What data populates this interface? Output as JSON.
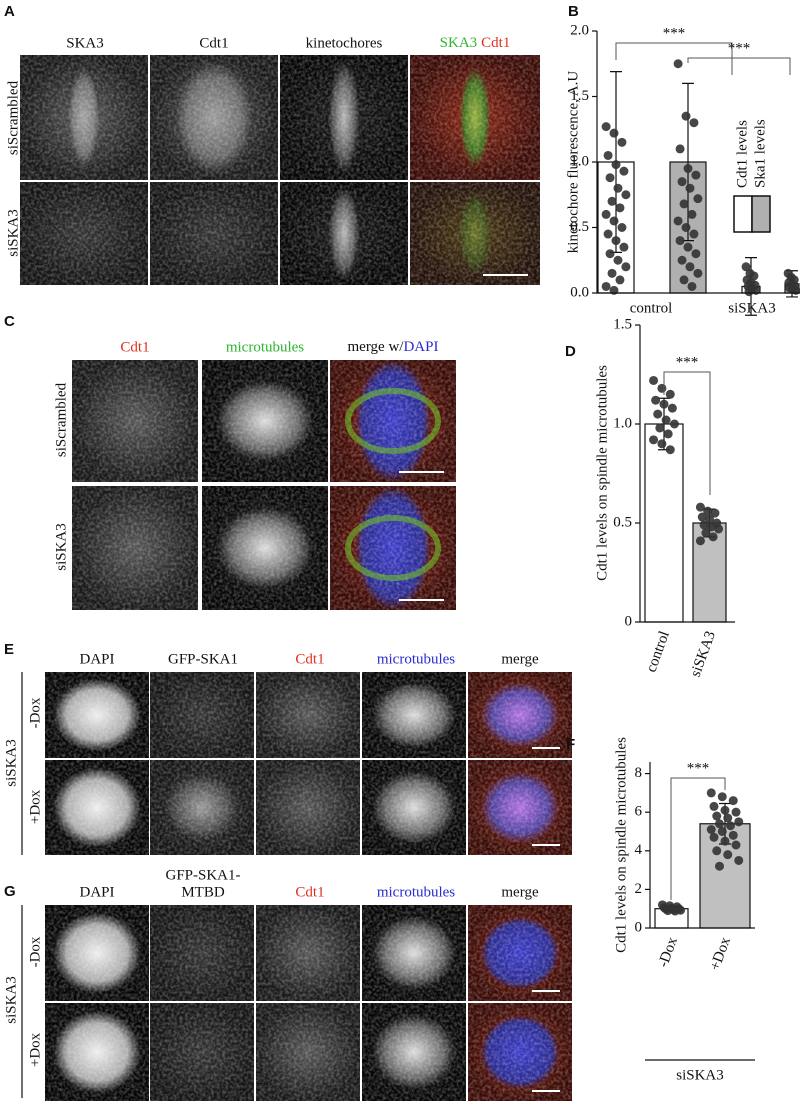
{
  "panels": {
    "A": {
      "label": "A",
      "columns": [
        "SKA3",
        "Cdt1",
        "kinetochores"
      ],
      "merge_column": [
        "SKA3",
        "Cdt1"
      ],
      "rows": [
        "siScrambled",
        "siSKA3"
      ]
    },
    "C": {
      "label": "C",
      "columns": [
        "Cdt1",
        "microtubules"
      ],
      "merge_column": [
        "merge w/",
        "DAPI"
      ],
      "rows": [
        "siScrambled",
        "siSKA3"
      ]
    },
    "E": {
      "label": "E",
      "columns": [
        "DAPI",
        "GFP-SKA1",
        "Cdt1",
        "microtubules",
        "merge"
      ],
      "group": "siSKA3",
      "rows": [
        "-Dox",
        "+Dox"
      ]
    },
    "G": {
      "label": "G",
      "columns": [
        "DAPI",
        "GFP-SKA1-",
        "MTBD",
        "Cdt1",
        "microtubules",
        "merge"
      ],
      "group": "siSKA3",
      "rows": [
        "-Dox",
        "+Dox"
      ]
    }
  },
  "chart_data": [
    {
      "type": "bar",
      "panel": "B",
      "y_label": "kinetochore fluorescence, A.U",
      "significance": [
        "***",
        "***"
      ],
      "categories": [
        "control",
        "siSKA3"
      ],
      "series": [
        {
          "name": "Cdt1 levels",
          "color": "#ffffff",
          "values": [
            1.0,
            0.05
          ],
          "errors": [
            0.69,
            0.22
          ],
          "points": [
            [
              1.27,
              1.22,
              1.15,
              1.05,
              0.98,
              0.93,
              0.88,
              0.8,
              0.75,
              0.7,
              0.65,
              0.6,
              0.55,
              0.5,
              0.45,
              0.4,
              0.35,
              0.3,
              0.25,
              0.2,
              0.15,
              0.1,
              0.05,
              0.02
            ],
            [
              0.2,
              0.15,
              0.13,
              0.1,
              0.08,
              0.06,
              0.05,
              0.03,
              0.02,
              0.01
            ]
          ]
        },
        {
          "name": "Ska1 levels",
          "color": "#b0b0b0",
          "values": [
            1.0,
            0.07
          ],
          "errors": [
            0.6,
            0.1
          ],
          "points": [
            [
              1.75,
              1.35,
              1.3,
              1.1,
              0.95,
              0.9,
              0.85,
              0.8,
              0.72,
              0.68,
              0.6,
              0.55,
              0.5,
              0.45,
              0.4,
              0.35,
              0.3,
              0.25,
              0.2,
              0.15,
              0.1,
              0.05
            ],
            [
              0.15,
              0.12,
              0.1,
              0.08,
              0.07,
              0.05,
              0.04,
              0.03,
              0.02
            ]
          ]
        }
      ],
      "ylim": [
        0,
        2
      ],
      "yticks": [
        {
          "value": 0,
          "label": "0.0"
        },
        0.5,
        {
          "value": 1,
          "label": "1.0"
        },
        1.5,
        {
          "value": 2,
          "label": "2.0"
        }
      ]
    },
    {
      "type": "bar",
      "panel": "D",
      "y_label": "Cdt1 levels on spindle microtubules",
      "significance": [
        "***"
      ],
      "categories": [
        "control",
        "siSKA3"
      ],
      "series": [
        {
          "colors": [
            "#ffffff",
            "#c0c0c0"
          ],
          "values": [
            1.0,
            0.5
          ],
          "errors": [
            0.13,
            0.07
          ],
          "points": [
            [
              1.22,
              1.18,
              1.15,
              1.12,
              1.1,
              1.08,
              1.05,
              1.02,
              1.0,
              0.98,
              0.95,
              0.92,
              0.9,
              0.87
            ],
            [
              0.58,
              0.56,
              0.55,
              0.53,
              0.52,
              0.5,
              0.49,
              0.48,
              0.47,
              0.45,
              0.43,
              0.41
            ]
          ]
        }
      ],
      "ylim": [
        0,
        1.5
      ],
      "yticks": [
        0,
        0.5,
        {
          "value": 1,
          "label": "1.0"
        },
        1.5
      ]
    },
    {
      "type": "bar",
      "panel": "F",
      "y_label": "Cdt1 levels on spindle microtubules",
      "significance": [
        "***"
      ],
      "group_label": "siSKA3",
      "categories": [
        "-Dox",
        "+Dox"
      ],
      "series": [
        {
          "colors": [
            "#ffffff",
            "#c0c0c0"
          ],
          "values": [
            1.0,
            5.4
          ],
          "errors": [
            0.12,
            1.05
          ],
          "points": [
            [
              1.2,
              1.15,
              1.1,
              1.05,
              1.02,
              1.0,
              0.98,
              0.95,
              0.92,
              0.9,
              0.88
            ],
            [
              7.0,
              6.8,
              6.6,
              6.3,
              6.1,
              6.0,
              5.8,
              5.7,
              5.5,
              5.4,
              5.3,
              5.1,
              5.0,
              4.8,
              4.7,
              4.5,
              4.3,
              4.0,
              3.8,
              3.5,
              3.2
            ]
          ]
        }
      ],
      "ylim": [
        0,
        8.6
      ],
      "yticks": [
        0,
        2,
        4,
        6,
        8
      ]
    }
  ]
}
